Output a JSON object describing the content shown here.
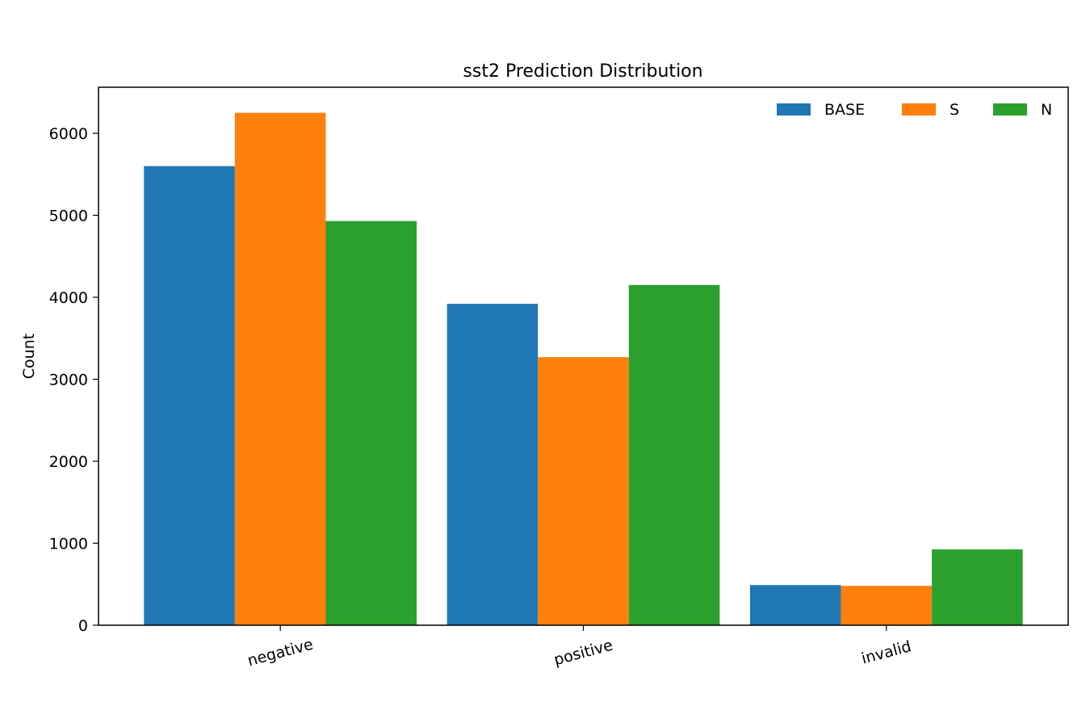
{
  "chart_data": {
    "type": "bar",
    "title": "sst2 Prediction Distribution",
    "xlabel": "",
    "ylabel": "Count",
    "categories": [
      "negative",
      "positive",
      "invalid"
    ],
    "series": [
      {
        "name": "BASE",
        "color": "#1f77b4",
        "values": [
          5600,
          3920,
          490
        ]
      },
      {
        "name": "S",
        "color": "#ff7f0e",
        "values": [
          6250,
          3270,
          480
        ]
      },
      {
        "name": "N",
        "color": "#2ca02c",
        "values": [
          4930,
          4150,
          925
        ]
      }
    ],
    "ylim": [
      0,
      6562
    ],
    "yticks": [
      0,
      1000,
      2000,
      3000,
      4000,
      5000,
      6000
    ],
    "ytick_labels": [
      "0",
      "1000",
      "2000",
      "3000",
      "4000",
      "5000",
      "6000"
    ],
    "legend_position": "top-right",
    "grid": false
  }
}
